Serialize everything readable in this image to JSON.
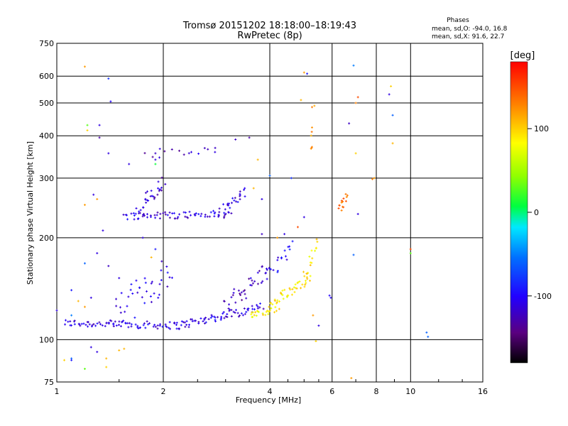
{
  "chart_data": {
    "type": "scatter",
    "title": "Tromsø 20151202 18:18:00–18:19:43",
    "subtitle": "RwPretec (8p)",
    "xlabel": "Frequency [MHz]",
    "ylabel": "Stationary phase Virtual Height [km]",
    "x_scale": "log",
    "y_scale": "log",
    "xlim": [
      1,
      16
    ],
    "ylim": [
      75,
      750
    ],
    "x_ticks": [
      1,
      2,
      4,
      6,
      8,
      10,
      16
    ],
    "y_ticks": [
      75,
      100,
      200,
      300,
      400,
      500,
      600,
      750
    ],
    "grid": true,
    "phases_box": {
      "title": "Phases",
      "line1": "mean, sd,O: -94.0, 16.8",
      "line2": "mean, sd,X:  91.6, 22.7"
    },
    "colorbar": {
      "label": "[deg]",
      "range": [
        -180,
        180
      ],
      "ticks": [
        100,
        0,
        -100
      ],
      "colormap": "rainbow"
    },
    "series": [
      {
        "traces": [
          {
            "x0": 1.05,
            "x1": 2.2,
            "y0": 112,
            "y1": 110,
            "phase": -110,
            "n": 80,
            "sy": 0.025
          },
          {
            "x0": 2.2,
            "x1": 3.8,
            "y0": 110,
            "y1": 125,
            "phase": -110,
            "n": 70,
            "sy": 0.03
          },
          {
            "x0": 3.0,
            "x1": 3.9,
            "y0": 125,
            "y1": 160,
            "phase": -120,
            "n": 35,
            "sy": 0.06
          },
          {
            "x0": 1.45,
            "x1": 2.1,
            "y0": 118,
            "y1": 160,
            "phase": -110,
            "n": 40,
            "sy": 0.12
          },
          {
            "x0": 1.55,
            "x1": 3.1,
            "y0": 232,
            "y1": 235,
            "phase": -110,
            "n": 70,
            "sy": 0.025
          },
          {
            "x0": 2.9,
            "x1": 3.4,
            "y0": 235,
            "y1": 275,
            "phase": -110,
            "n": 25,
            "sy": 0.04
          },
          {
            "x0": 1.7,
            "x1": 2.0,
            "y0": 240,
            "y1": 290,
            "phase": -115,
            "n": 30,
            "sy": 0.06
          },
          {
            "x0": 1.8,
            "x1": 2.8,
            "y0": 355,
            "y1": 360,
            "phase": -120,
            "n": 12,
            "sy": 0.03
          },
          {
            "x0": 4.0,
            "x1": 5.2,
            "y0": 125,
            "y1": 155,
            "phase": 90,
            "n": 45,
            "sy": 0.04
          },
          {
            "x0": 3.5,
            "x1": 4.2,
            "y0": 118,
            "y1": 123,
            "phase": 90,
            "n": 25,
            "sy": 0.02
          },
          {
            "x0": 5.0,
            "x1": 5.5,
            "y0": 150,
            "y1": 200,
            "phase": 90,
            "n": 15,
            "sy": 0.04
          },
          {
            "x0": 3.9,
            "x1": 4.6,
            "y0": 150,
            "y1": 190,
            "phase": -100,
            "n": 20,
            "sy": 0.05
          },
          {
            "x0": 6.3,
            "x1": 6.6,
            "y0": 240,
            "y1": 265,
            "phase": 140,
            "n": 15,
            "sy": 0.03
          },
          {
            "x0": 5.2,
            "x1": 5.3,
            "y0": 340,
            "y1": 470,
            "phase": 120,
            "n": 8,
            "sy": 0.1
          }
        ]
      }
    ],
    "scatter_extra": [
      {
        "x": 1.9,
        "y": 340,
        "phase": -110
      },
      {
        "x": 1.9,
        "y": 330,
        "phase": 10
      },
      {
        "x": 1.95,
        "y": 345,
        "phase": -110
      },
      {
        "x": 1.4,
        "y": 590,
        "phase": -80
      },
      {
        "x": 1.42,
        "y": 505,
        "phase": -100
      },
      {
        "x": 1.2,
        "y": 640,
        "phase": 120
      },
      {
        "x": 1.22,
        "y": 430,
        "phase": 30
      },
      {
        "x": 1.22,
        "y": 415,
        "phase": 100
      },
      {
        "x": 1.32,
        "y": 430,
        "phase": -110
      },
      {
        "x": 1.32,
        "y": 395,
        "phase": -130
      },
      {
        "x": 1.4,
        "y": 355,
        "phase": -110
      },
      {
        "x": 1.9,
        "y": 355,
        "phase": -120
      },
      {
        "x": 2.4,
        "y": 358,
        "phase": -110
      },
      {
        "x": 2.8,
        "y": 358,
        "phase": -110
      },
      {
        "x": 3.2,
        "y": 390,
        "phase": -120
      },
      {
        "x": 3.5,
        "y": 395,
        "phase": -130
      },
      {
        "x": 5.0,
        "y": 615,
        "phase": 120
      },
      {
        "x": 5.1,
        "y": 610,
        "phase": -90
      },
      {
        "x": 4.9,
        "y": 510,
        "phase": 110
      },
      {
        "x": 6.9,
        "y": 645,
        "phase": -50
      },
      {
        "x": 7.1,
        "y": 520,
        "phase": 150
      },
      {
        "x": 7.0,
        "y": 500,
        "phase": 130
      },
      {
        "x": 8.8,
        "y": 560,
        "phase": 100
      },
      {
        "x": 8.7,
        "y": 530,
        "phase": -110
      },
      {
        "x": 8.9,
        "y": 460,
        "phase": -60
      },
      {
        "x": 8.9,
        "y": 380,
        "phase": 110
      },
      {
        "x": 6.7,
        "y": 435,
        "phase": -120
      },
      {
        "x": 7.0,
        "y": 355,
        "phase": 100
      },
      {
        "x": 3.7,
        "y": 340,
        "phase": 110
      },
      {
        "x": 4.0,
        "y": 305,
        "phase": -60
      },
      {
        "x": 7.9,
        "y": 300,
        "phase": 120
      },
      {
        "x": 7.8,
        "y": 298,
        "phase": 130
      },
      {
        "x": 7.1,
        "y": 235,
        "phase": -110
      },
      {
        "x": 6.9,
        "y": 178,
        "phase": -60
      },
      {
        "x": 10.0,
        "y": 185,
        "phase": 150
      },
      {
        "x": 10.0,
        "y": 180,
        "phase": 30
      },
      {
        "x": 11.1,
        "y": 105,
        "phase": -60
      },
      {
        "x": 11.2,
        "y": 102,
        "phase": -60
      },
      {
        "x": 5.9,
        "y": 135,
        "phase": -100
      },
      {
        "x": 5.95,
        "y": 133,
        "phase": -100
      },
      {
        "x": 5.3,
        "y": 118,
        "phase": 120
      },
      {
        "x": 5.5,
        "y": 110,
        "phase": -110
      },
      {
        "x": 5.4,
        "y": 99,
        "phase": 100
      },
      {
        "x": 6.8,
        "y": 77,
        "phase": 120
      },
      {
        "x": 1.05,
        "y": 87,
        "phase": 100
      },
      {
        "x": 1.1,
        "y": 88,
        "phase": -60
      },
      {
        "x": 1.1,
        "y": 87,
        "phase": -90
      },
      {
        "x": 1.2,
        "y": 82,
        "phase": 30
      },
      {
        "x": 1.25,
        "y": 95,
        "phase": -110
      },
      {
        "x": 1.3,
        "y": 92,
        "phase": -110
      },
      {
        "x": 1.38,
        "y": 83,
        "phase": 100
      },
      {
        "x": 1.5,
        "y": 93,
        "phase": 110
      },
      {
        "x": 1.55,
        "y": 94,
        "phase": 110
      },
      {
        "x": 1.38,
        "y": 88,
        "phase": 110
      },
      {
        "x": 1.2,
        "y": 250,
        "phase": 120
      },
      {
        "x": 1.27,
        "y": 268,
        "phase": -110
      },
      {
        "x": 1.3,
        "y": 260,
        "phase": 120
      },
      {
        "x": 1.35,
        "y": 210,
        "phase": -110
      },
      {
        "x": 1.6,
        "y": 330,
        "phase": -110
      },
      {
        "x": 1.75,
        "y": 200,
        "phase": -110
      },
      {
        "x": 1.2,
        "y": 168,
        "phase": -60
      },
      {
        "x": 1.3,
        "y": 180,
        "phase": -110
      },
      {
        "x": 1.4,
        "y": 165,
        "phase": -120
      },
      {
        "x": 1.5,
        "y": 152,
        "phase": -110
      },
      {
        "x": 1.1,
        "y": 140,
        "phase": -90
      },
      {
        "x": 1.15,
        "y": 130,
        "phase": 110
      },
      {
        "x": 1.2,
        "y": 125,
        "phase": 120
      },
      {
        "x": 1.25,
        "y": 133,
        "phase": -110
      },
      {
        "x": 1.1,
        "y": 118,
        "phase": -50
      },
      {
        "x": 1.0,
        "y": 122,
        "phase": -110
      },
      {
        "x": 1.9,
        "y": 185,
        "phase": -90
      },
      {
        "x": 1.85,
        "y": 175,
        "phase": 110
      },
      {
        "x": 4.6,
        "y": 300,
        "phase": -80
      },
      {
        "x": 3.6,
        "y": 280,
        "phase": 110
      },
      {
        "x": 3.8,
        "y": 260,
        "phase": -110
      },
      {
        "x": 4.8,
        "y": 215,
        "phase": 150
      },
      {
        "x": 5.0,
        "y": 230,
        "phase": -110
      },
      {
        "x": 4.4,
        "y": 205,
        "phase": -110
      },
      {
        "x": 4.2,
        "y": 200,
        "phase": 120
      },
      {
        "x": 3.8,
        "y": 205,
        "phase": -120
      }
    ]
  }
}
